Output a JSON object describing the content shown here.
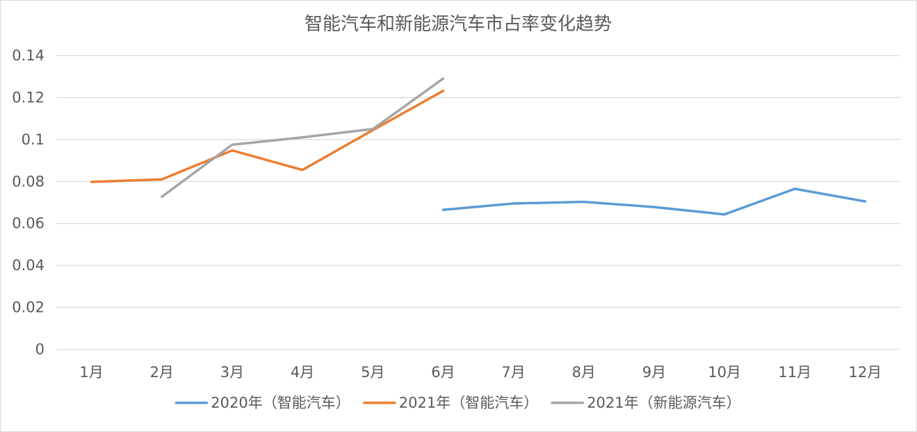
{
  "chart_data": {
    "type": "line",
    "title": "智能汽车和新能源汽车市占率变化趋势",
    "xlabel": "",
    "ylabel": "",
    "categories": [
      "1月",
      "2月",
      "3月",
      "4月",
      "5月",
      "6月",
      "7月",
      "8月",
      "9月",
      "10月",
      "11月",
      "12月"
    ],
    "ylim": [
      0,
      0.14
    ],
    "yticks": [
      "0",
      "0.02",
      "0.04",
      "0.06",
      "0.08",
      "0.1",
      "0.12",
      "0.14"
    ],
    "grid": true,
    "legend_position": "bottom",
    "series": [
      {
        "name": "2020年（智能汽车）",
        "color": "#5b9bd5",
        "values": [
          null,
          null,
          null,
          null,
          null,
          0.0665,
          0.0695,
          0.0703,
          0.0678,
          0.0643,
          0.0765,
          0.0705
        ]
      },
      {
        "name": "2021年（智能汽车）",
        "color": "#ed7d31",
        "values": [
          0.0798,
          0.081,
          0.0948,
          0.0855,
          0.1045,
          0.1232,
          null,
          null,
          null,
          null,
          null,
          null
        ]
      },
      {
        "name": "2021年（新能源汽车）",
        "color": "#a5a5a5",
        "values": [
          null,
          0.0727,
          0.0975,
          0.101,
          0.105,
          0.129,
          null,
          null,
          null,
          null,
          null,
          null
        ]
      }
    ]
  }
}
